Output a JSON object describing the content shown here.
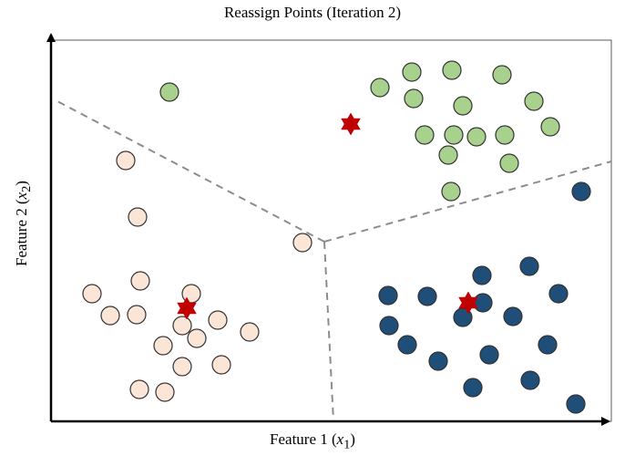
{
  "title": "Reassign Points (Iteration 2)",
  "xlabel": {
    "prefix": "Feature 1 (",
    "var": "x",
    "sub": "1",
    "suffix": ")"
  },
  "ylabel": {
    "prefix": "Feature 2 (",
    "var": "x",
    "sub": "2",
    "suffix": ")"
  },
  "colors": {
    "cluster_green": "#a9d18e",
    "cluster_peach": "#fbe5d6",
    "cluster_navy": "#1f4e79",
    "outline": "#333333",
    "centroid": "#c00000",
    "boundary": "#8c8c8c"
  },
  "chart_data": {
    "type": "scatter",
    "xlim": [
      0,
      615
    ],
    "ylim": [
      0,
      418
    ],
    "grid": false,
    "clusters": [
      {
        "color": "cluster_green",
        "points": [
          [
            130,
            361
          ],
          [
            361,
            366
          ],
          [
            396,
            383
          ],
          [
            440,
            385
          ],
          [
            495,
            380
          ],
          [
            530,
            351
          ],
          [
            398,
            354
          ],
          [
            452,
            346
          ],
          [
            548,
            323
          ],
          [
            410,
            314
          ],
          [
            442,
            314
          ],
          [
            467,
            312
          ],
          [
            498,
            314
          ],
          [
            436,
            292
          ],
          [
            503,
            283
          ],
          [
            439,
            252
          ]
        ],
        "centroid": [
          329,
          326
        ]
      },
      {
        "color": "cluster_peach",
        "points": [
          [
            82,
            286
          ],
          [
            95,
            224
          ],
          [
            276,
            196
          ],
          [
            98,
            154
          ],
          [
            45,
            140
          ],
          [
            154,
            140
          ],
          [
            65,
            116
          ],
          [
            94,
            117
          ],
          [
            183,
            111
          ],
          [
            144,
            105
          ],
          [
            160,
            91
          ],
          [
            218,
            98
          ],
          [
            123,
            83
          ],
          [
            144,
            60
          ],
          [
            187,
            62
          ],
          [
            97,
            35
          ],
          [
            125,
            32
          ]
        ],
        "centroid": [
          149,
          124
        ]
      },
      {
        "color": "cluster_navy",
        "points": [
          [
            582,
            252
          ],
          [
            473,
            160
          ],
          [
            525,
            170
          ],
          [
            370,
            138
          ],
          [
            413,
            137
          ],
          [
            474,
            130
          ],
          [
            557,
            140
          ],
          [
            452,
            114
          ],
          [
            507,
            115
          ],
          [
            371,
            105
          ],
          [
            391,
            84
          ],
          [
            545,
            84
          ],
          [
            425,
            66
          ],
          [
            481,
            73
          ],
          [
            526,
            45
          ],
          [
            463,
            37
          ],
          [
            576,
            19
          ]
        ],
        "centroid": [
          458,
          130
        ]
      }
    ],
    "boundaries": [
      [
        [
          300,
          197
        ],
        [
          5,
          352
        ]
      ],
      [
        [
          300,
          197
        ],
        [
          615,
          285
        ]
      ],
      [
        [
          300,
          197
        ],
        [
          310,
          0
        ]
      ]
    ]
  }
}
